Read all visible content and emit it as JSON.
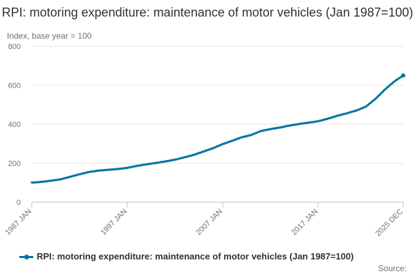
{
  "chart_data": {
    "type": "line",
    "title": "RPI: motoring expenditure: maintenance of motor vehicles (Jan 1987=100)",
    "ylabel": "Index, base year = 100",
    "xlabel": "",
    "ylim": [
      0,
      800
    ],
    "yticks": [
      "0",
      "200",
      "400",
      "600",
      "800"
    ],
    "xticks": [
      "1987 JAN",
      "1997 JAN",
      "2007 JAN",
      "2017 JAN",
      "2025 DEC"
    ],
    "x_range": [
      "1987 JAN",
      "2025 DEC"
    ],
    "grid": "horizontal",
    "legend_position": "bottom",
    "series": [
      {
        "name": "RPI: motoring expenditure: maintenance of motor vehicles (Jan 1987=100)",
        "color": "#0075a3",
        "points": [
          [
            "1987-01",
            100
          ],
          [
            "1988-01",
            104
          ],
          [
            "1989-01",
            110
          ],
          [
            "1990-01",
            117
          ],
          [
            "1991-01",
            130
          ],
          [
            "1992-01",
            143
          ],
          [
            "1993-01",
            155
          ],
          [
            "1994-01",
            162
          ],
          [
            "1995-01",
            166
          ],
          [
            "1996-01",
            170
          ],
          [
            "1997-01",
            176
          ],
          [
            "1998-01",
            186
          ],
          [
            "1999-01",
            194
          ],
          [
            "2000-01",
            201
          ],
          [
            "2001-01",
            209
          ],
          [
            "2002-01",
            218
          ],
          [
            "2003-01",
            230
          ],
          [
            "2004-01",
            243
          ],
          [
            "2005-01",
            260
          ],
          [
            "2006-01",
            277
          ],
          [
            "2007-01",
            298
          ],
          [
            "2008-01",
            315
          ],
          [
            "2009-01",
            333
          ],
          [
            "2010-01",
            345
          ],
          [
            "2011-01",
            365
          ],
          [
            "2012-01",
            375
          ],
          [
            "2013-01",
            383
          ],
          [
            "2014-01",
            393
          ],
          [
            "2015-01",
            401
          ],
          [
            "2016-01",
            408
          ],
          [
            "2017-01",
            415
          ],
          [
            "2018-01",
            428
          ],
          [
            "2019-01",
            443
          ],
          [
            "2020-01",
            456
          ],
          [
            "2021-01",
            470
          ],
          [
            "2022-01",
            490
          ],
          [
            "2023-01",
            530
          ],
          [
            "2024-01",
            578
          ],
          [
            "2025-01",
            620
          ],
          [
            "2025-12",
            650
          ]
        ]
      }
    ]
  },
  "footer": {
    "source_label": "Source:"
  }
}
